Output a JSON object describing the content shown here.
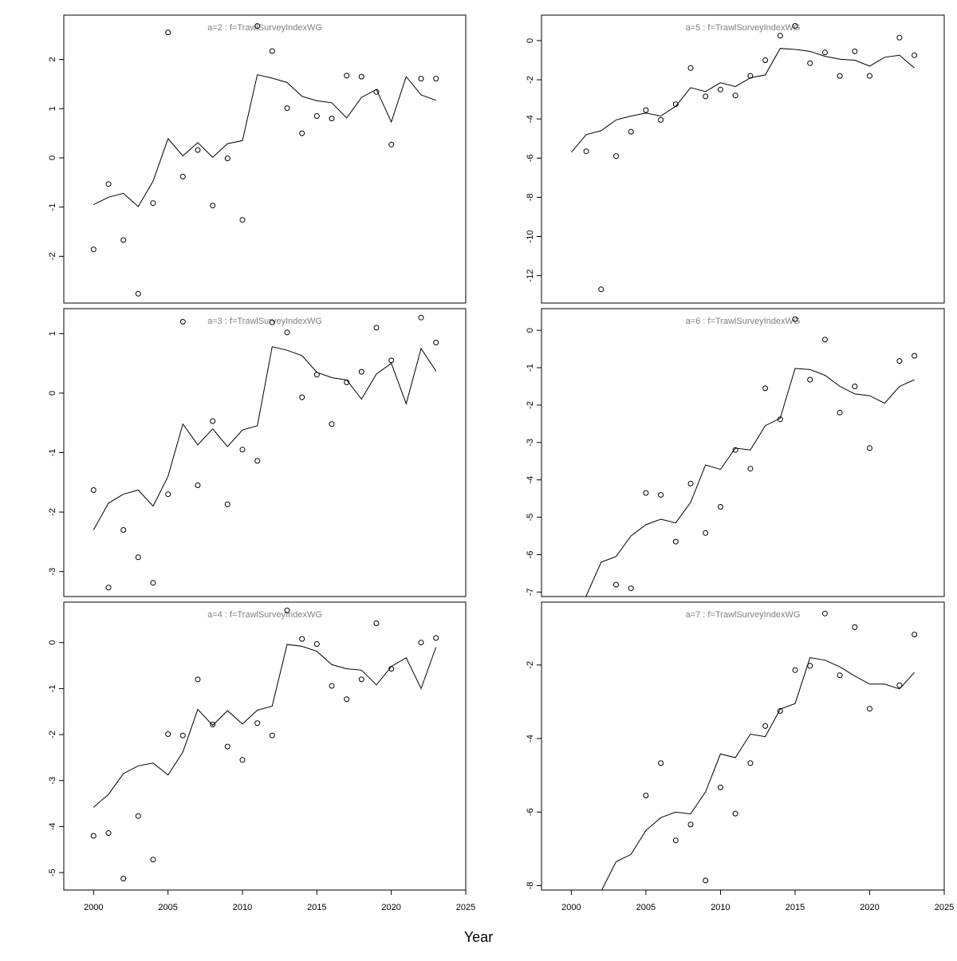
{
  "figure": {
    "xlabel": "Year"
  },
  "chart_data": [
    {
      "type": "line",
      "title": "a=2  :  f=TrawlSurveyIndexWG",
      "xlim": [
        1998,
        2025
      ],
      "ylim": [
        -2.95,
        2.9
      ],
      "yticks": [
        -2,
        -1,
        0,
        1,
        2
      ],
      "xticks": [],
      "fit": {
        "x": [
          2000,
          2001,
          2002,
          2003,
          2004,
          2005,
          2006,
          2007,
          2008,
          2009,
          2010,
          2011,
          2012,
          2013,
          2014,
          2015,
          2016,
          2017,
          2018,
          2019,
          2020,
          2021,
          2022,
          2023
        ],
        "y": [
          -0.95,
          -0.8,
          -0.72,
          -0.99,
          -0.47,
          0.39,
          0.04,
          0.31,
          0.01,
          0.29,
          0.35,
          1.69,
          1.62,
          1.53,
          1.25,
          1.16,
          1.12,
          0.81,
          1.23,
          1.39,
          0.73,
          1.65,
          1.28,
          1.17
        ]
      },
      "obs": {
        "x": [
          2000,
          2001,
          2002,
          2003,
          2004,
          2005,
          2006,
          2007,
          2008,
          2009,
          2010,
          2011,
          2012,
          2013,
          2014,
          2015,
          2016,
          2017,
          2018,
          2019,
          2020,
          2022,
          2023
        ],
        "y": [
          -1.86,
          -0.53,
          -1.67,
          -2.76,
          -0.92,
          2.55,
          -0.38,
          0.16,
          -0.97,
          -0.01,
          -1.26,
          2.68,
          2.17,
          1.01,
          0.5,
          0.85,
          0.8,
          1.67,
          1.65,
          1.34,
          0.27,
          1.61,
          1.61
        ]
      }
    },
    {
      "type": "line",
      "title": "a=5  :  f=TrawlSurveyIndexWG",
      "xlim": [
        1998,
        2025
      ],
      "ylim": [
        -13.4,
        1.3
      ],
      "yticks": [
        -12,
        -10,
        -8,
        -6,
        -4,
        -2,
        0
      ],
      "xticks": [],
      "fit": {
        "x": [
          2000,
          2001,
          2002,
          2003,
          2004,
          2005,
          2006,
          2007,
          2008,
          2009,
          2010,
          2011,
          2012,
          2013,
          2014,
          2015,
          2016,
          2017,
          2018,
          2019,
          2020,
          2021,
          2022,
          2023
        ],
        "y": [
          -5.7,
          -4.8,
          -4.6,
          -4.05,
          -3.85,
          -3.7,
          -3.85,
          -3.35,
          -2.4,
          -2.6,
          -2.15,
          -2.35,
          -1.9,
          -1.75,
          -0.4,
          -0.45,
          -0.55,
          -0.8,
          -0.95,
          -1.0,
          -1.3,
          -0.85,
          -0.75,
          -1.4
        ]
      },
      "obs": {
        "x": [
          2001,
          2002,
          2003,
          2004,
          2005,
          2006,
          2007,
          2008,
          2009,
          2010,
          2011,
          2012,
          2013,
          2014,
          2015,
          2016,
          2017,
          2018,
          2019,
          2020,
          2022,
          2023
        ],
        "y": [
          -5.65,
          -12.7,
          -5.9,
          -4.65,
          -3.55,
          -4.05,
          -3.25,
          -1.4,
          -2.85,
          -2.5,
          -2.8,
          -1.8,
          -1.0,
          0.25,
          0.75,
          -1.15,
          -0.6,
          -1.8,
          -0.55,
          -1.8,
          0.15,
          -0.75
        ]
      }
    },
    {
      "type": "line",
      "title": "a=3  :  f=TrawlSurveyIndexWG",
      "xlim": [
        1998,
        2025
      ],
      "ylim": [
        -3.42,
        1.42
      ],
      "yticks": [
        -3,
        -2,
        -1,
        0,
        1
      ],
      "xticks": [],
      "fit": {
        "x": [
          2000,
          2001,
          2002,
          2003,
          2004,
          2005,
          2006,
          2007,
          2008,
          2009,
          2010,
          2011,
          2012,
          2013,
          2014,
          2015,
          2016,
          2017,
          2018,
          2019,
          2020,
          2021,
          2022,
          2023
        ],
        "y": [
          -2.3,
          -1.85,
          -1.7,
          -1.63,
          -1.9,
          -1.4,
          -0.52,
          -0.87,
          -0.6,
          -0.9,
          -0.62,
          -0.55,
          0.78,
          0.72,
          0.63,
          0.35,
          0.26,
          0.22,
          -0.1,
          0.32,
          0.5,
          -0.18,
          0.75,
          0.37
        ]
      },
      "obs": {
        "x": [
          2000,
          2001,
          2002,
          2003,
          2004,
          2005,
          2006,
          2007,
          2008,
          2009,
          2010,
          2011,
          2012,
          2013,
          2014,
          2015,
          2016,
          2017,
          2018,
          2019,
          2020,
          2022,
          2023
        ],
        "y": [
          -1.63,
          -3.27,
          -2.3,
          -2.76,
          -3.19,
          -1.7,
          1.2,
          -1.55,
          -0.47,
          -1.87,
          -0.95,
          -1.14,
          1.19,
          1.02,
          -0.07,
          0.31,
          -0.52,
          0.18,
          0.36,
          1.1,
          0.55,
          1.27,
          0.85
        ]
      }
    },
    {
      "type": "line",
      "title": "a=6  :  f=TrawlSurveyIndexWG",
      "xlim": [
        1998,
        2025
      ],
      "ylim": [
        -7.12,
        0.58
      ],
      "yticks": [
        -7,
        -6,
        -5,
        -4,
        -3,
        -2,
        -1,
        0
      ],
      "xticks": [],
      "fit": {
        "x": [
          2000,
          2001,
          2002,
          2003,
          2004,
          2005,
          2006,
          2007,
          2008,
          2009,
          2010,
          2011,
          2012,
          2013,
          2014,
          2015,
          2016,
          2017,
          2018,
          2019,
          2020,
          2021,
          2022,
          2023
        ],
        "y": [
          -7.5,
          -7.1,
          -6.2,
          -6.05,
          -5.5,
          -5.2,
          -5.05,
          -5.15,
          -4.6,
          -3.6,
          -3.72,
          -3.15,
          -3.2,
          -2.55,
          -2.35,
          -1.02,
          -1.05,
          -1.2,
          -1.5,
          -1.7,
          -1.75,
          -1.95,
          -1.5,
          -1.32
        ]
      },
      "obs": {
        "x": [
          2003,
          2004,
          2005,
          2006,
          2007,
          2008,
          2009,
          2010,
          2011,
          2012,
          2013,
          2014,
          2015,
          2016,
          2017,
          2018,
          2019,
          2020,
          2022,
          2023
        ],
        "y": [
          -6.8,
          -6.9,
          -4.35,
          -4.4,
          -5.65,
          -4.1,
          -5.42,
          -4.72,
          -3.2,
          -3.7,
          -1.55,
          -2.38,
          0.3,
          -1.32,
          -0.25,
          -2.2,
          -1.5,
          -3.15,
          -0.82,
          -0.68
        ]
      }
    },
    {
      "type": "line",
      "title": "a=4  :  f=TrawlSurveyIndexWG",
      "xlim": [
        1998,
        2025
      ],
      "ylim": [
        -5.38,
        0.88
      ],
      "yticks": [
        -5,
        -4,
        -3,
        -2,
        -1,
        0
      ],
      "xticks": [
        2000,
        2005,
        2010,
        2015,
        2020,
        2025
      ],
      "fit": {
        "x": [
          2000,
          2001,
          2002,
          2003,
          2004,
          2005,
          2006,
          2007,
          2008,
          2009,
          2010,
          2011,
          2012,
          2013,
          2014,
          2015,
          2016,
          2017,
          2018,
          2019,
          2020,
          2021,
          2022,
          2023
        ],
        "y": [
          -3.58,
          -3.3,
          -2.85,
          -2.68,
          -2.62,
          -2.88,
          -2.38,
          -1.45,
          -1.8,
          -1.48,
          -1.77,
          -1.47,
          -1.38,
          -0.04,
          -0.08,
          -0.19,
          -0.48,
          -0.57,
          -0.6,
          -0.92,
          -0.52,
          -0.33,
          -1.0,
          -0.1
        ]
      },
      "obs": {
        "x": [
          2000,
          2001,
          2002,
          2003,
          2004,
          2005,
          2006,
          2007,
          2008,
          2009,
          2010,
          2011,
          2012,
          2013,
          2014,
          2015,
          2016,
          2017,
          2018,
          2019,
          2020,
          2022,
          2023
        ],
        "y": [
          -4.2,
          -4.14,
          -5.13,
          -3.77,
          -4.72,
          -1.99,
          -2.02,
          -0.8,
          -1.78,
          -2.26,
          -2.55,
          -1.75,
          -2.02,
          0.7,
          0.08,
          -0.03,
          -0.94,
          -1.23,
          -0.8,
          0.42,
          -0.57,
          0.0,
          0.1
        ]
      }
    },
    {
      "type": "line",
      "title": "a=7  :  f=TrawlSurveyIndexWG",
      "xlim": [
        1998,
        2025
      ],
      "ylim": [
        -8.12,
        -0.29
      ],
      "yticks": [
        -8,
        -6,
        -4,
        -2
      ],
      "xticks": [
        2000,
        2005,
        2010,
        2015,
        2020,
        2025
      ],
      "fit": {
        "x": [
          2000,
          2001,
          2002,
          2003,
          2004,
          2005,
          2006,
          2007,
          2008,
          2009,
          2010,
          2011,
          2012,
          2013,
          2014,
          2015,
          2016,
          2017,
          2018,
          2019,
          2020,
          2021,
          2022,
          2023
        ],
        "y": [
          -9.0,
          -8.7,
          -8.15,
          -7.35,
          -7.15,
          -6.5,
          -6.15,
          -6.0,
          -6.05,
          -5.45,
          -4.42,
          -4.52,
          -3.88,
          -3.95,
          -3.2,
          -3.05,
          -1.8,
          -1.87,
          -2.05,
          -2.3,
          -2.52,
          -2.52,
          -2.65,
          -2.2
        ]
      },
      "obs": {
        "x": [
          2005,
          2006,
          2007,
          2008,
          2009,
          2010,
          2011,
          2012,
          2013,
          2014,
          2015,
          2016,
          2017,
          2018,
          2019,
          2020,
          2022,
          2023
        ],
        "y": [
          -5.55,
          -4.67,
          -6.77,
          -6.34,
          -7.86,
          -5.33,
          -6.04,
          -4.67,
          -3.66,
          -3.25,
          -2.14,
          -2.02,
          -0.6,
          -2.28,
          -0.97,
          -3.19,
          -2.55,
          -1.17
        ]
      }
    }
  ]
}
